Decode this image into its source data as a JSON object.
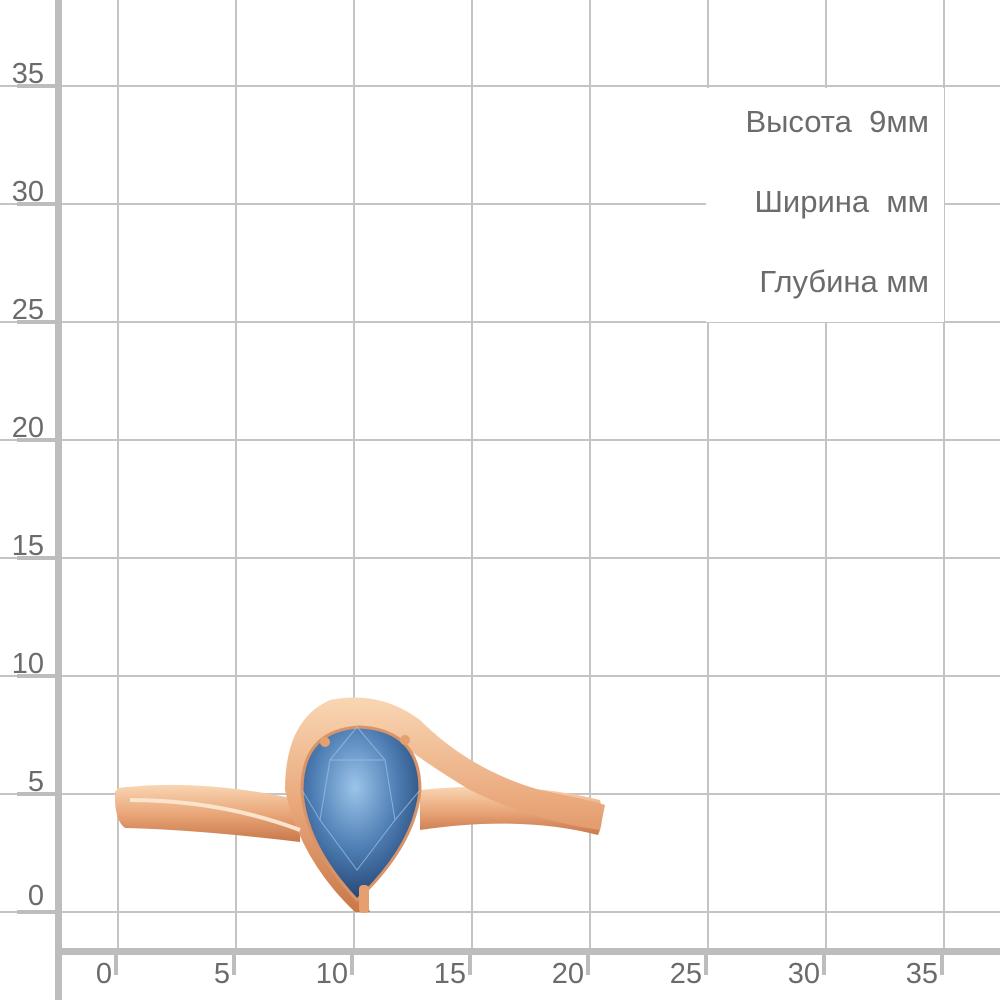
{
  "y_axis": {
    "labels": [
      "35",
      "30",
      "25",
      "20",
      "15",
      "10",
      "5",
      "0"
    ]
  },
  "x_axis": {
    "labels": [
      "0",
      "5",
      "10",
      "15",
      "20",
      "25",
      "30",
      "35"
    ]
  },
  "dimensions": {
    "height": "Высота  9мм",
    "width": "Ширина  мм",
    "depth": "Глубина мм"
  },
  "colors": {
    "grid": "#c4c4c4",
    "gold": "#e9a77a",
    "gem": "#4a78b0"
  }
}
